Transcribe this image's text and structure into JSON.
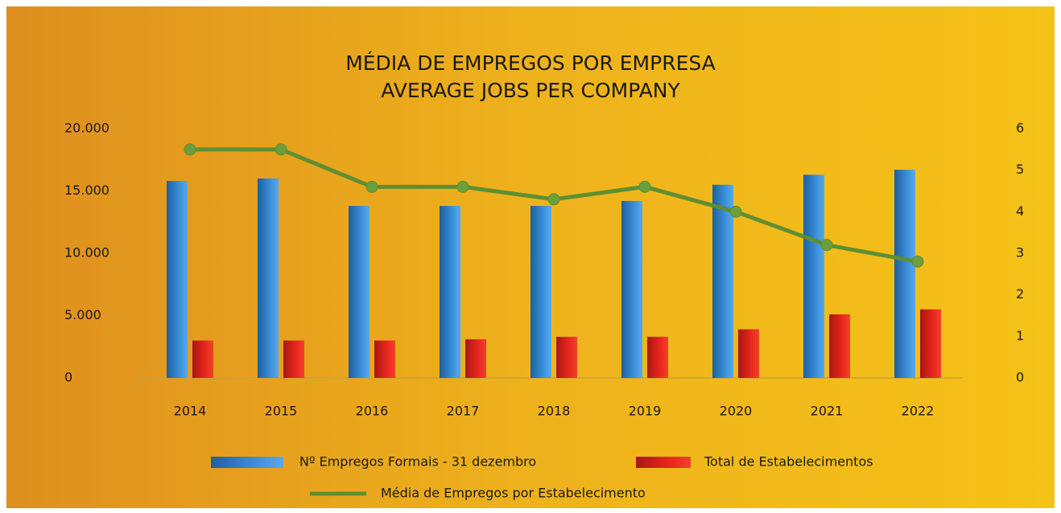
{
  "chart_data": {
    "type": "bar",
    "title": "MÉDIA DE EMPREGOS POR EMPRESA",
    "subtitle": "AVERAGE JOBS PER COMPANY",
    "categories": [
      "2014",
      "2015",
      "2016",
      "2017",
      "2018",
      "2019",
      "2020",
      "2021",
      "2022"
    ],
    "series": [
      {
        "name": "Nº Empregos Formais - 31 dezembro",
        "color": "#3a8fd8",
        "values": [
          15800,
          16000,
          13800,
          13800,
          13800,
          14200,
          15500,
          16300,
          16700
        ]
      },
      {
        "name": "Total de Estabelecimentos",
        "color": "#e8261c",
        "values": [
          3000,
          3000,
          3000,
          3100,
          3300,
          3300,
          3900,
          5100,
          5500
        ]
      },
      {
        "name": "Média de Empregos por Estabelecimento",
        "color": "#5e8f32",
        "type": "line",
        "axis": "y2",
        "values": [
          5.5,
          5.5,
          4.6,
          4.6,
          4.3,
          4.6,
          4.0,
          3.2,
          2.8
        ]
      }
    ],
    "ylim": [
      0,
      20000
    ],
    "yticks": [
      {
        "value": 0,
        "label": "0"
      },
      {
        "value": 5000,
        "label": "5.000"
      },
      {
        "value": 10000,
        "label": "10.000"
      },
      {
        "value": 15000,
        "label": "15.000"
      },
      {
        "value": 20000,
        "label": "20.000"
      }
    ],
    "y2lim": [
      0,
      6
    ],
    "y2ticks": [
      0,
      1,
      2,
      3,
      4,
      5,
      6
    ],
    "grid": false
  }
}
